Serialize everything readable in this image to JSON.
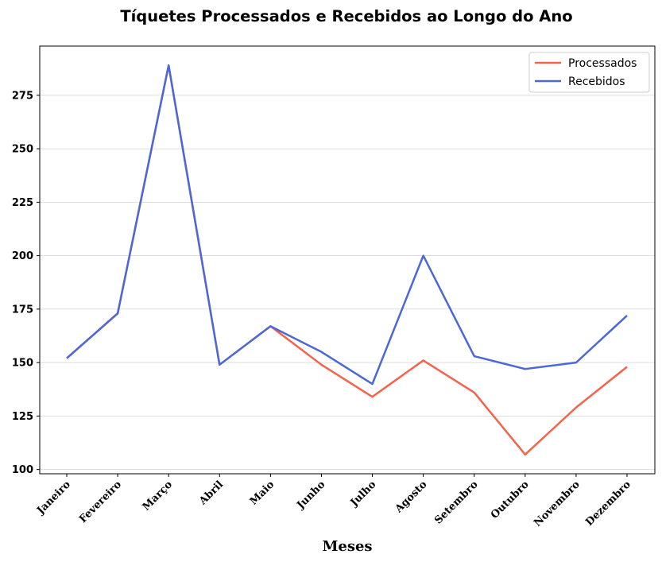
{
  "chart_data": {
    "type": "line",
    "title": "Tíquetes Processados e Recebidos ao Longo do Ano",
    "xlabel": "Meses",
    "ylabel": "",
    "categories": [
      "Janeiro",
      "Fevereiro",
      "Março",
      "Abril",
      "Maio",
      "Junho",
      "Julho",
      "Agosto",
      "Setembro",
      "Outubro",
      "Novembro",
      "Dezembro"
    ],
    "series": [
      {
        "name": "Processados",
        "color": "#f4634a",
        "values": [
          152,
          173,
          289,
          149,
          167,
          149,
          134,
          151,
          136,
          107,
          129,
          148
        ]
      },
      {
        "name": "Recebidos",
        "color": "#4a68d8",
        "values": [
          152,
          173,
          289,
          149,
          167,
          155,
          140,
          200,
          153,
          147,
          150,
          172
        ]
      }
    ],
    "ylim": [
      98,
      298
    ],
    "yticks": [
      100,
      125,
      150,
      175,
      200,
      225,
      250,
      275
    ],
    "grid": "horizontal",
    "legend_position": "top-right"
  }
}
